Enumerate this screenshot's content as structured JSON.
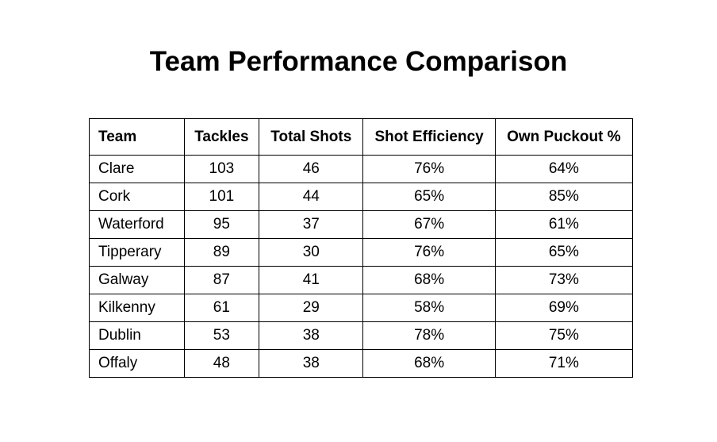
{
  "title": "Team Performance Comparison",
  "table": {
    "headers": [
      "Team",
      "Tackles",
      "Total Shots",
      "Shot Efficiency",
      "Own Puckout %"
    ],
    "rows": [
      [
        "Clare",
        "103",
        "46",
        "76%",
        "64%"
      ],
      [
        "Cork",
        "101",
        "44",
        "65%",
        "85%"
      ],
      [
        "Waterford",
        "95",
        "37",
        "67%",
        "61%"
      ],
      [
        "Tipperary",
        "89",
        "30",
        "76%",
        "65%"
      ],
      [
        "Galway",
        "87",
        "41",
        "68%",
        "73%"
      ],
      [
        "Kilkenny",
        "61",
        "29",
        "58%",
        "69%"
      ],
      [
        "Dublin",
        "53",
        "38",
        "78%",
        "75%"
      ],
      [
        "Offaly",
        "48",
        "38",
        "68%",
        "71%"
      ]
    ]
  }
}
